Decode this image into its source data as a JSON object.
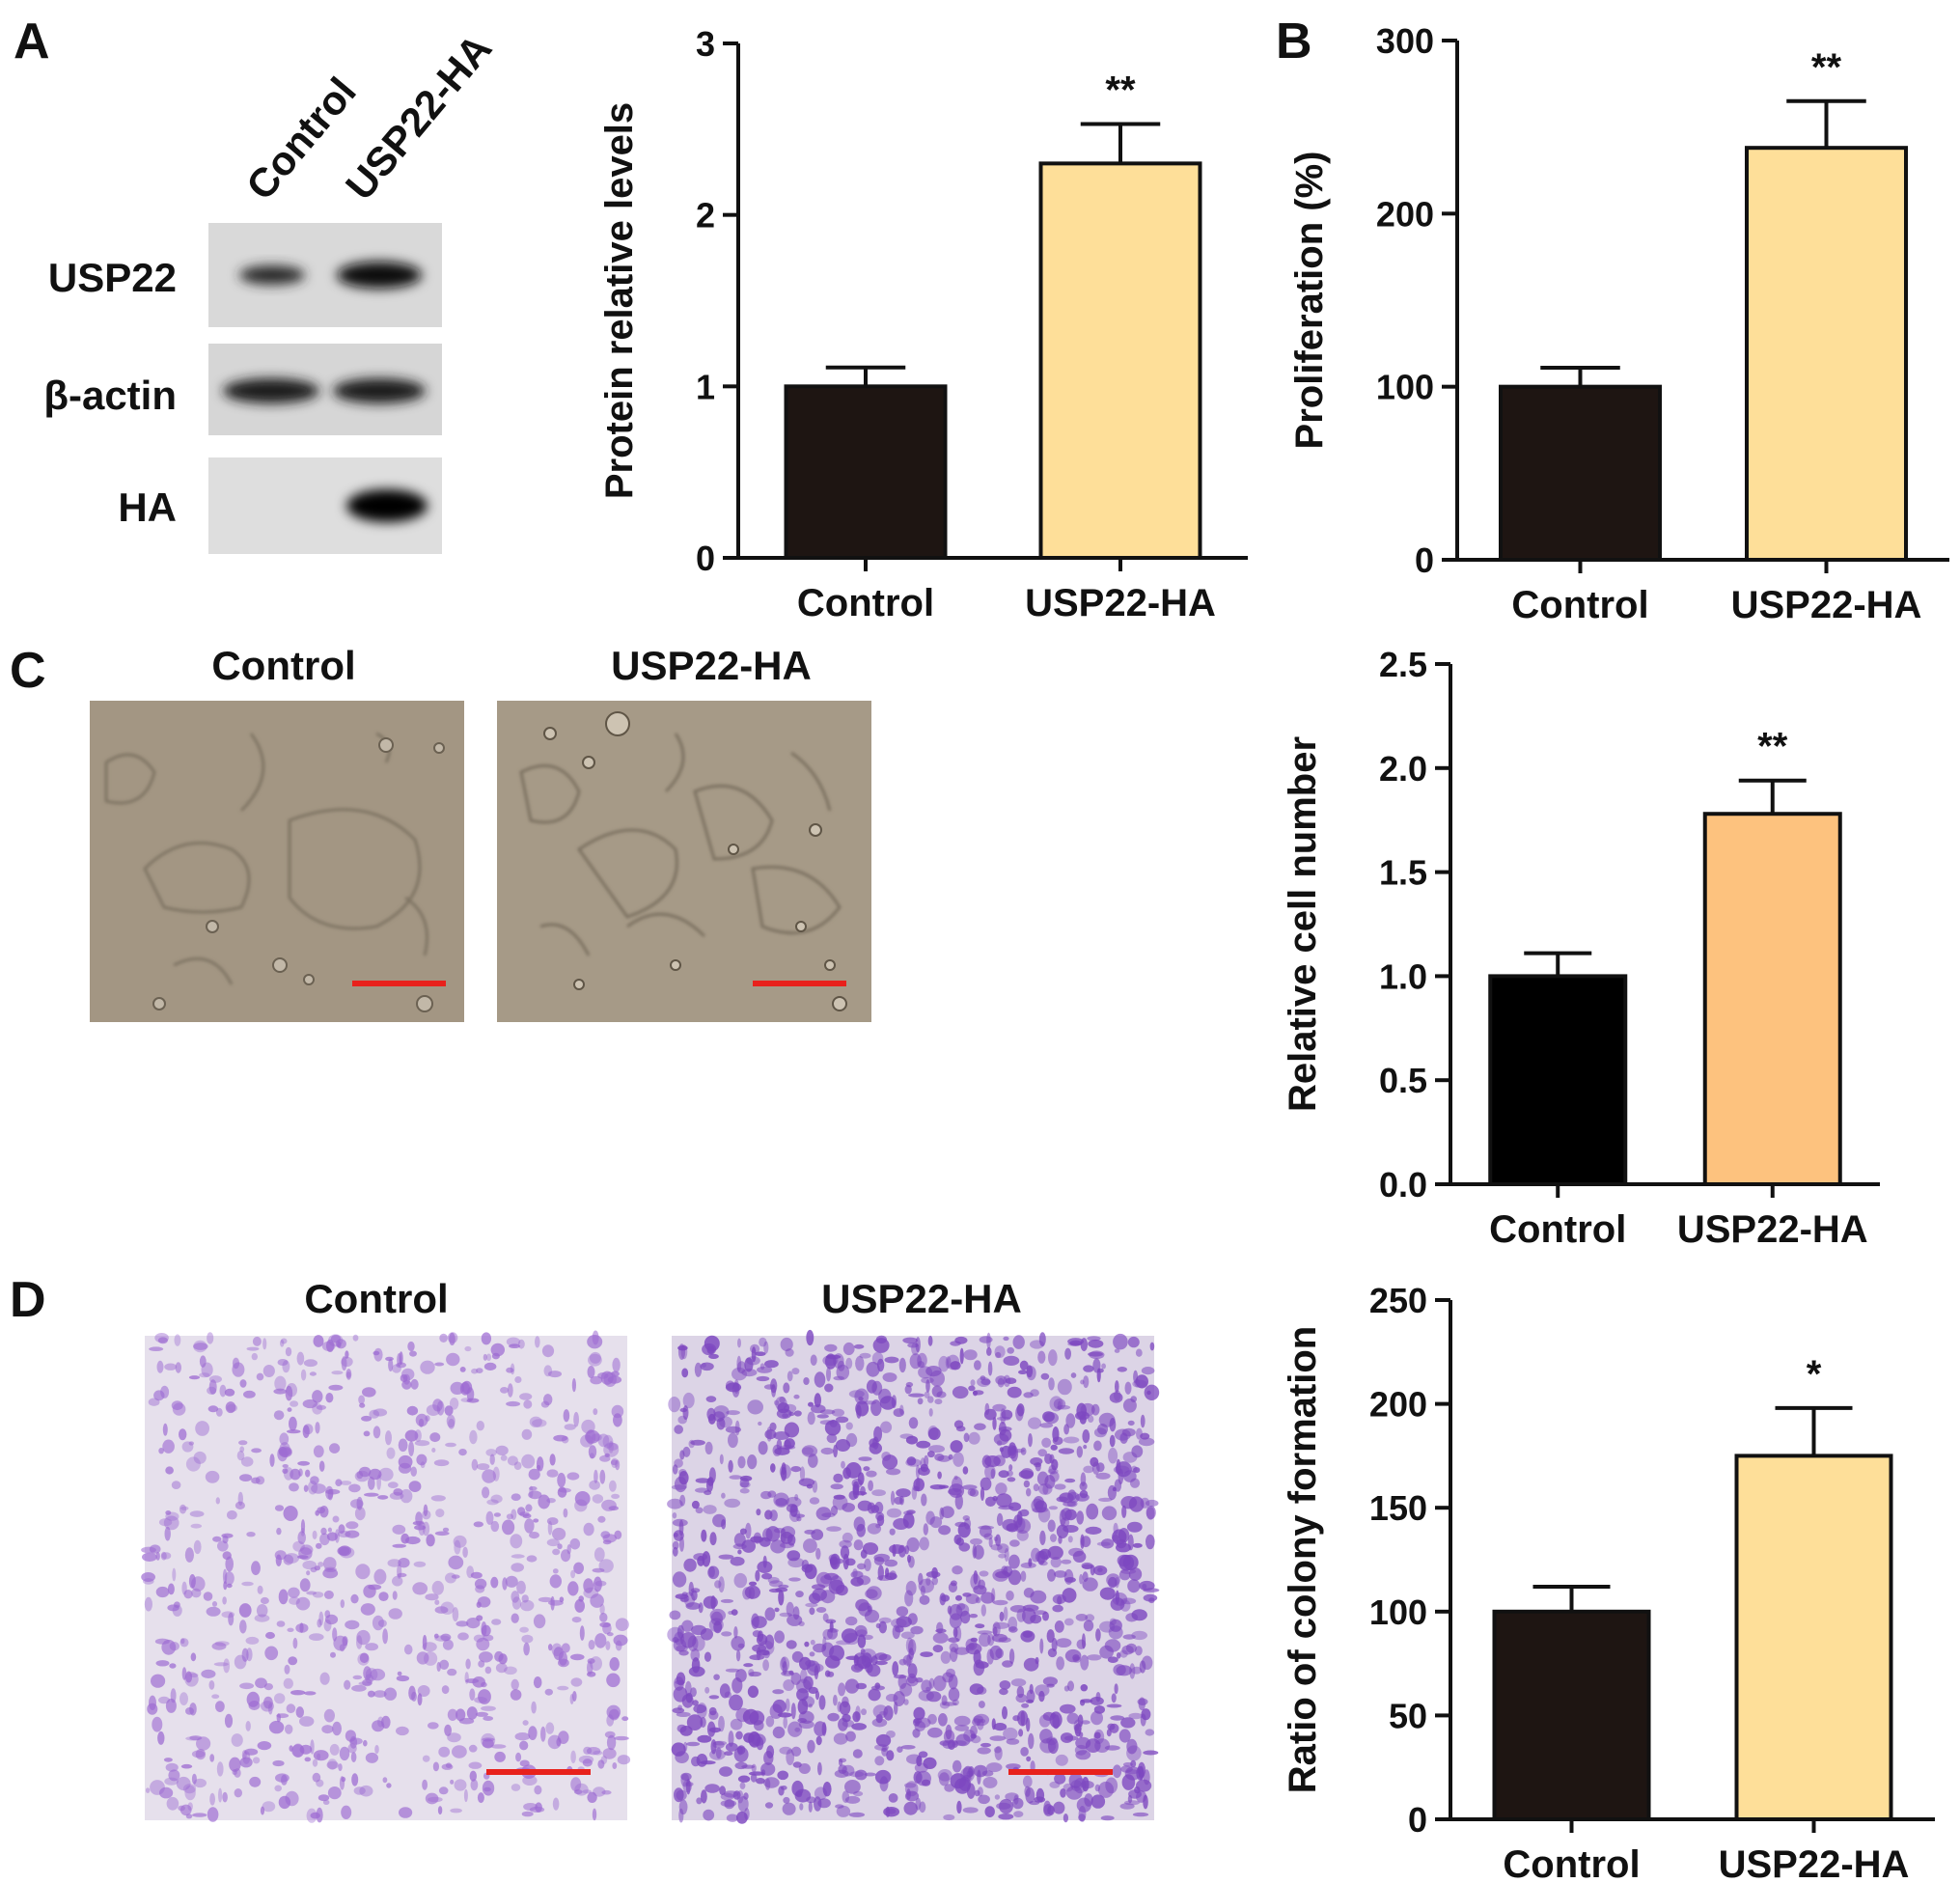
{
  "panels": {
    "A": {
      "letter": "A",
      "lane_labels": [
        "Control",
        "USP22-HA"
      ],
      "row_labels": [
        "USP22",
        "β-actin",
        "HA"
      ]
    },
    "C": {
      "letter": "C",
      "image_titles": [
        "Control",
        "USP22-HA"
      ]
    },
    "D": {
      "letter": "D",
      "image_titles": [
        "Control",
        "USP22-HA"
      ]
    },
    "B": {
      "letter": "B"
    }
  },
  "colors": {
    "control_bar": "#1e1512",
    "usp22_bar_yellow": "#fedf99",
    "usp22_bar_orange": "#fdc27e",
    "scale_bar": "#e8211c",
    "micrograph_bg": "#a39683",
    "stain_bg": "#e6e0ec",
    "stain_color": "#8e59c9"
  },
  "chart_data": [
    {
      "id": "chart_A",
      "type": "bar",
      "categories": [
        "Control",
        "USP22-HA"
      ],
      "values": [
        1.0,
        2.3
      ],
      "errors": [
        0.11,
        0.23
      ],
      "significance": [
        "",
        "**"
      ],
      "ylabel": "Protein relative levels",
      "ylim": [
        0,
        3
      ],
      "yticks": [
        0,
        1,
        2,
        3
      ],
      "ytick_labels": [
        "0",
        "1",
        "2",
        "3"
      ],
      "bar_colors": [
        "#1e1512",
        "#fedf99"
      ]
    },
    {
      "id": "chart_B",
      "type": "bar",
      "categories": [
        "Control",
        "USP22-HA"
      ],
      "values": [
        100,
        238
      ],
      "errors": [
        11,
        27
      ],
      "significance": [
        "",
        "**"
      ],
      "ylabel": "Proliferation (%)",
      "ylim": [
        0,
        300
      ],
      "yticks": [
        0,
        100,
        200,
        300
      ],
      "ytick_labels": [
        "0",
        "100",
        "200",
        "300"
      ],
      "bar_colors": [
        "#1e1512",
        "#fedf99"
      ]
    },
    {
      "id": "chart_C",
      "type": "bar",
      "categories": [
        "Control",
        "USP22-HA"
      ],
      "values": [
        1.0,
        1.78
      ],
      "errors": [
        0.11,
        0.16
      ],
      "significance": [
        "",
        "**"
      ],
      "ylabel": "Relative cell number",
      "ylim": [
        0,
        2.5
      ],
      "yticks": [
        0,
        0.5,
        1.0,
        1.5,
        2.0,
        2.5
      ],
      "ytick_labels": [
        "0.0",
        "0.5",
        "1.0",
        "1.5",
        "2.0",
        "2.5"
      ],
      "bar_colors": [
        "#000000",
        "#fdc27e"
      ]
    },
    {
      "id": "chart_D",
      "type": "bar",
      "categories": [
        "Control",
        "USP22-HA"
      ],
      "values": [
        100,
        175
      ],
      "errors": [
        12,
        23
      ],
      "significance": [
        "",
        "*"
      ],
      "ylabel": "Ratio of colony formation",
      "ylim": [
        0,
        250
      ],
      "yticks": [
        0,
        50,
        100,
        150,
        200,
        250
      ],
      "ytick_labels": [
        "0",
        "50",
        "100",
        "150",
        "200",
        "250"
      ],
      "bar_colors": [
        "#1e1512",
        "#fedf99"
      ]
    }
  ]
}
